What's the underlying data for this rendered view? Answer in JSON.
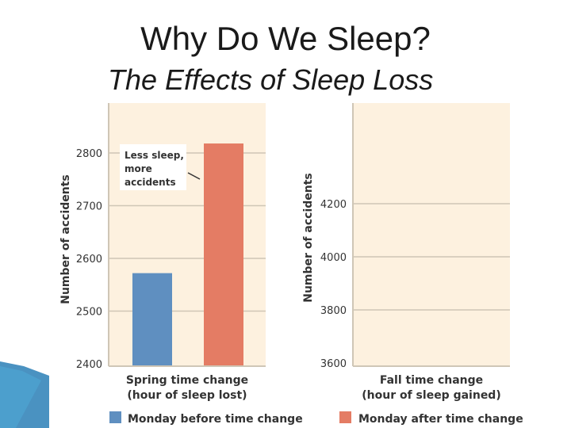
{
  "slide": {
    "title": "Why Do We Sleep?",
    "subtitle": "The Effects of Sleep Loss"
  },
  "colors": {
    "before": "#5f8fc0",
    "after": "#e47c64",
    "panel_bg": "#fdf1df",
    "grid": "#cfc6b6",
    "accent": "#2a7fb6"
  },
  "chart_data": [
    {
      "type": "bar",
      "categories": [
        "Spring time change (hour of sleep lost)"
      ],
      "category_lines": [
        "Spring time change",
        "(hour of sleep lost)"
      ],
      "series": [
        {
          "name": "Monday before time change",
          "values": [
            2572
          ]
        },
        {
          "name": "Monday after time change",
          "values": [
            2818
          ]
        }
      ],
      "ylabel": "Number of accidents",
      "yticks": [
        2400,
        2500,
        2600,
        2700,
        2800
      ],
      "ylim": [
        2400,
        2900
      ],
      "grid": true,
      "annotation": [
        "Less sleep,",
        "more",
        "accidents"
      ]
    },
    {
      "type": "bar",
      "categories": [
        "Fall time change (hour of sleep gained)"
      ],
      "category_lines": [
        "Fall time change",
        "(hour of sleep gained)"
      ],
      "series": [],
      "ylabel": "Number of accidents",
      "yticks": [
        3600,
        3800,
        4000,
        4200
      ],
      "ylim": [
        3600,
        4400
      ],
      "grid": true
    }
  ],
  "legend": [
    {
      "label": "Monday before time change",
      "color": "#5f8fc0"
    },
    {
      "label": "Monday after time change",
      "color": "#e47c64"
    }
  ]
}
